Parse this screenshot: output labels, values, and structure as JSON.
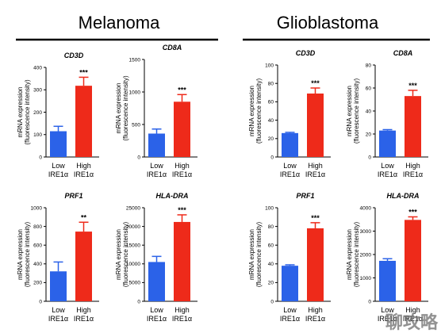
{
  "figure": {
    "groups": [
      "Melanoma",
      "Glioblastoma"
    ],
    "watermark": "聊攻略"
  },
  "colors": {
    "low": "#2b62e8",
    "high": "#ee2a1a",
    "axis": "#000000"
  },
  "chart_data": [
    {
      "type": "bar",
      "group": "Melanoma",
      "title": "CD3D",
      "ylabel": [
        "mRNA expression",
        "(fluorescence intensity)"
      ],
      "ylim": [
        0,
        400
      ],
      "yticks": [
        0,
        100,
        200,
        300,
        400
      ],
      "categories": [
        [
          "Low",
          "IRE1α"
        ],
        [
          "High",
          "IRE1α"
        ]
      ],
      "values": [
        115,
        318
      ],
      "errors": [
        22,
        38
      ],
      "significance": "***"
    },
    {
      "type": "bar",
      "group": "Melanoma",
      "title": "CD8A",
      "ylabel": [
        "mRNA expression",
        "(fluorescence intensity)"
      ],
      "ylim": [
        0,
        1500
      ],
      "yticks": [
        0,
        500,
        1000,
        1500
      ],
      "categories": [
        [
          "Low",
          "IRE1α"
        ],
        [
          "High",
          "IRE1α"
        ]
      ],
      "values": [
        360,
        850
      ],
      "errors": [
        70,
        110
      ],
      "significance": "***"
    },
    {
      "type": "bar",
      "group": "Glioblastoma",
      "title": "CD3D",
      "ylabel": [
        "mRNA expression",
        "(fluorescence intensity)"
      ],
      "ylim": [
        0,
        100
      ],
      "yticks": [
        0,
        20,
        40,
        60,
        80,
        100
      ],
      "categories": [
        [
          "Low",
          "IRE1α"
        ],
        [
          "High",
          "IRE1α"
        ]
      ],
      "values": [
        26,
        69
      ],
      "errors": [
        0.8,
        6
      ],
      "significance": "***"
    },
    {
      "type": "bar",
      "group": "Glioblastoma",
      "title": "CD8A",
      "ylabel": [
        "mRNA expression",
        "(fluorescence intensity)"
      ],
      "ylim": [
        0,
        80
      ],
      "yticks": [
        0,
        20,
        40,
        60,
        80
      ],
      "categories": [
        [
          "Low",
          "IRE1α"
        ],
        [
          "High",
          "IRE1α"
        ]
      ],
      "values": [
        23,
        53
      ],
      "errors": [
        0.8,
        5
      ],
      "significance": "***"
    },
    {
      "type": "bar",
      "group": "Melanoma",
      "title": "PRF1",
      "ylabel": [
        "mRNA expression",
        "(fluorescence intensity)"
      ],
      "ylim": [
        0,
        1000
      ],
      "yticks": [
        0,
        200,
        400,
        600,
        800,
        1000
      ],
      "categories": [
        [
          "Low",
          "IRE1α"
        ],
        [
          "High",
          "IRE1α"
        ]
      ],
      "values": [
        320,
        745
      ],
      "errors": [
        100,
        100
      ],
      "significance": "**"
    },
    {
      "type": "bar",
      "group": "Melanoma",
      "title": "HLA-DRA",
      "ylabel": [
        "mRNA expression",
        "(fluorescence intensity)"
      ],
      "ylim": [
        0,
        25000
      ],
      "yticks": [
        0,
        5000,
        10000,
        15000,
        20000,
        25000
      ],
      "categories": [
        [
          "Low",
          "IRE1α"
        ],
        [
          "High",
          "IRE1α"
        ]
      ],
      "values": [
        10500,
        21200
      ],
      "errors": [
        1500,
        1900
      ],
      "significance": "***"
    },
    {
      "type": "bar",
      "group": "Glioblastoma",
      "title": "PRF1",
      "ylabel": [
        "mRNA expression",
        "(fluorescence intensity)"
      ],
      "ylim": [
        0,
        100
      ],
      "yticks": [
        0,
        20,
        40,
        60,
        80,
        100
      ],
      "categories": [
        [
          "Low",
          "IRE1α"
        ],
        [
          "High",
          "IRE1α"
        ]
      ],
      "values": [
        38,
        78
      ],
      "errors": [
        1,
        6
      ],
      "significance": "***"
    },
    {
      "type": "bar",
      "group": "Glioblastoma",
      "title": "HLA-DRA",
      "ylabel": [
        "mRNA expression",
        "(fluorescence intensity)"
      ],
      "ylim": [
        0,
        4000
      ],
      "yticks": [
        0,
        1000,
        2000,
        3000,
        4000
      ],
      "categories": [
        [
          "Low",
          "IRE1α"
        ],
        [
          "High",
          "IRE1α"
        ]
      ],
      "values": [
        1730,
        3480
      ],
      "errors": [
        90,
        130
      ],
      "significance": "***"
    }
  ]
}
